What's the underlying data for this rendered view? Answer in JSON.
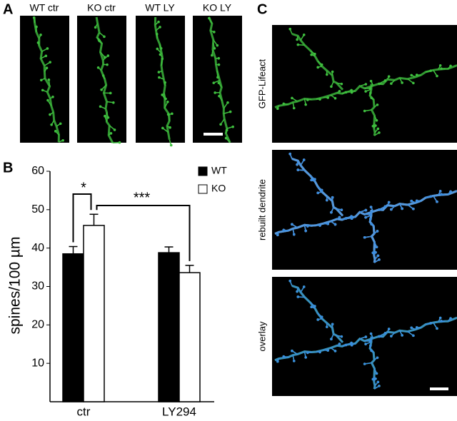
{
  "panels": {
    "a": "A",
    "b": "B",
    "c": "C"
  },
  "image_labels": [
    "WT ctr",
    "KO ctr",
    "WT LY",
    "KO LY"
  ],
  "c_labels": [
    "GFP-Lifeact",
    "rebuilt dendrite",
    "overlay"
  ],
  "chart_data": {
    "type": "bar",
    "y_label": "spines/100 µm",
    "categories": [
      "ctr",
      "LY294"
    ],
    "series": [
      {
        "name": "WT",
        "color": "#000000",
        "values": [
          38.5,
          38.8
        ],
        "errors": [
          1.9,
          1.5
        ]
      },
      {
        "name": "KO",
        "color": "#ffffff",
        "values": [
          45.9,
          33.6
        ],
        "errors": [
          2.9,
          1.9
        ]
      }
    ],
    "ylim": [
      0,
      60
    ],
    "yticks": [
      10,
      20,
      30,
      40,
      50,
      60
    ],
    "annotations": [
      "*",
      "***"
    ],
    "legend": "top-right"
  }
}
